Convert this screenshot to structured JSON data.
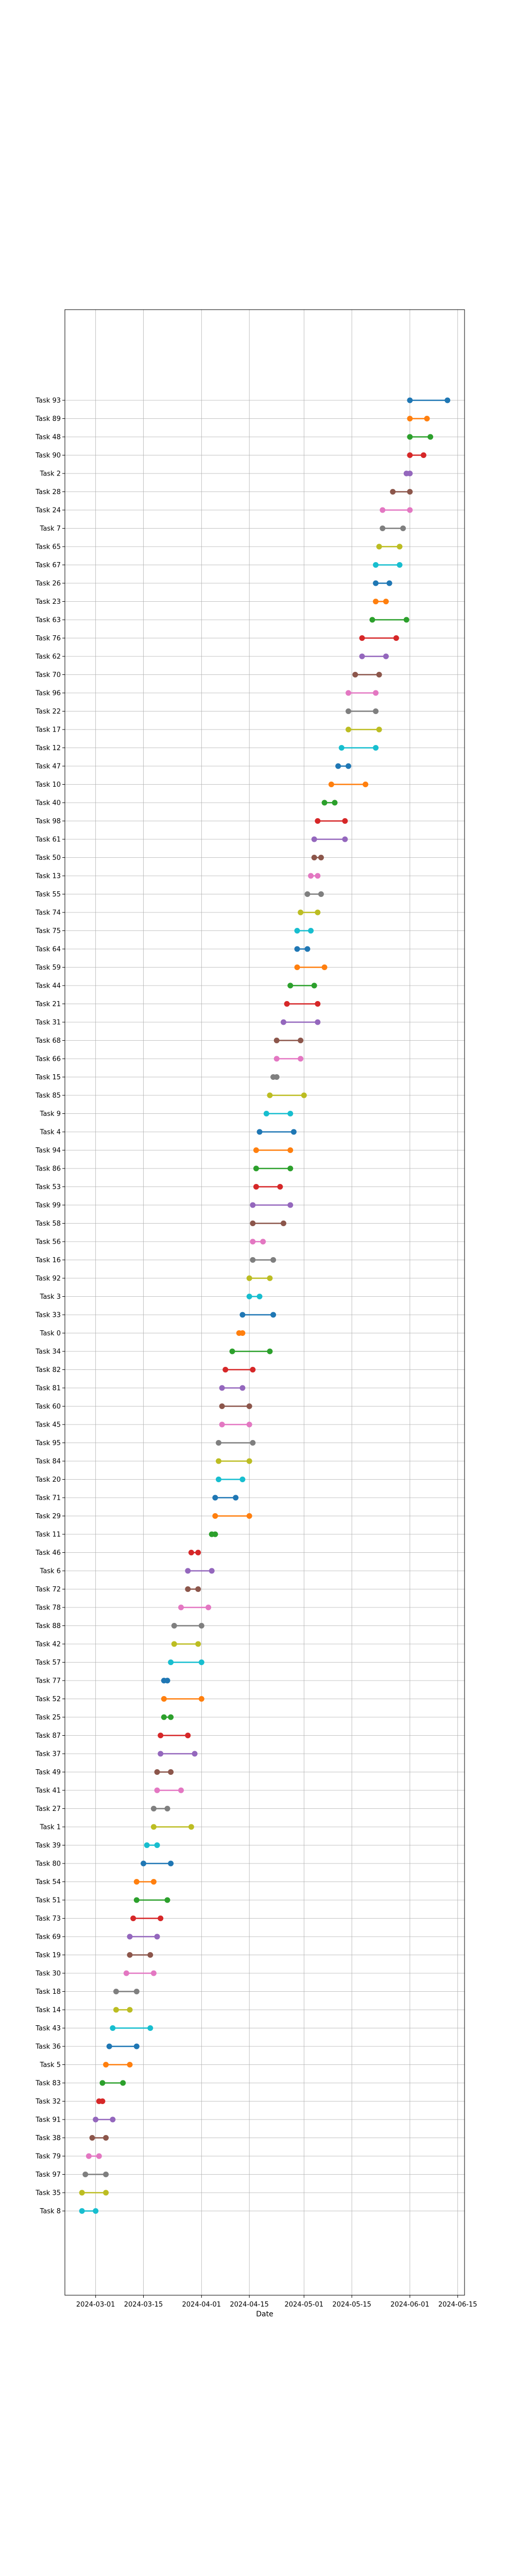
{
  "chart_data": {
    "type": "dumbbell",
    "title": "",
    "xlabel": "Date",
    "ylabel": "",
    "grid": true,
    "legend": "none",
    "x_type": "date",
    "xlim": [
      "2024-02-21",
      "2024-06-17"
    ],
    "x_ticks": [
      "2024-03-01",
      "2024-03-15",
      "2024-04-01",
      "2024-04-15",
      "2024-05-01",
      "2024-05-15",
      "2024-06-01",
      "2024-06-15"
    ],
    "palette": [
      "#1f77b4",
      "#ff7f0e",
      "#2ca02c",
      "#d62728",
      "#9467bd",
      "#8c564b",
      "#e377c2",
      "#7f7f7f",
      "#bcbd22",
      "#17becf"
    ],
    "tasks": [
      {
        "label": "Task 93",
        "start": "2024-06-01",
        "end": "2024-06-12"
      },
      {
        "label": "Task 89",
        "start": "2024-06-01",
        "end": "2024-06-06"
      },
      {
        "label": "Task 48",
        "start": "2024-06-01",
        "end": "2024-06-07"
      },
      {
        "label": "Task 90",
        "start": "2024-06-01",
        "end": "2024-06-05"
      },
      {
        "label": "Task 2",
        "start": "2024-05-31",
        "end": "2024-06-01"
      },
      {
        "label": "Task 28",
        "start": "2024-05-27",
        "end": "2024-06-01"
      },
      {
        "label": "Task 24",
        "start": "2024-05-24",
        "end": "2024-06-01"
      },
      {
        "label": "Task 7",
        "start": "2024-05-24",
        "end": "2024-05-30"
      },
      {
        "label": "Task 65",
        "start": "2024-05-23",
        "end": "2024-05-29"
      },
      {
        "label": "Task 67",
        "start": "2024-05-22",
        "end": "2024-05-29"
      },
      {
        "label": "Task 26",
        "start": "2024-05-22",
        "end": "2024-05-26"
      },
      {
        "label": "Task 23",
        "start": "2024-05-22",
        "end": "2024-05-25"
      },
      {
        "label": "Task 63",
        "start": "2024-05-21",
        "end": "2024-05-31"
      },
      {
        "label": "Task 76",
        "start": "2024-05-18",
        "end": "2024-05-28"
      },
      {
        "label": "Task 62",
        "start": "2024-05-18",
        "end": "2024-05-25"
      },
      {
        "label": "Task 70",
        "start": "2024-05-16",
        "end": "2024-05-23"
      },
      {
        "label": "Task 96",
        "start": "2024-05-14",
        "end": "2024-05-22"
      },
      {
        "label": "Task 22",
        "start": "2024-05-14",
        "end": "2024-05-22"
      },
      {
        "label": "Task 17",
        "start": "2024-05-14",
        "end": "2024-05-23"
      },
      {
        "label": "Task 12",
        "start": "2024-05-12",
        "end": "2024-05-22"
      },
      {
        "label": "Task 47",
        "start": "2024-05-11",
        "end": "2024-05-14"
      },
      {
        "label": "Task 10",
        "start": "2024-05-09",
        "end": "2024-05-19"
      },
      {
        "label": "Task 40",
        "start": "2024-05-07",
        "end": "2024-05-10"
      },
      {
        "label": "Task 98",
        "start": "2024-05-05",
        "end": "2024-05-13"
      },
      {
        "label": "Task 61",
        "start": "2024-05-04",
        "end": "2024-05-13"
      },
      {
        "label": "Task 50",
        "start": "2024-05-04",
        "end": "2024-05-06"
      },
      {
        "label": "Task 13",
        "start": "2024-05-03",
        "end": "2024-05-05"
      },
      {
        "label": "Task 55",
        "start": "2024-05-02",
        "end": "2024-05-06"
      },
      {
        "label": "Task 74",
        "start": "2024-04-30",
        "end": "2024-05-05"
      },
      {
        "label": "Task 75",
        "start": "2024-04-29",
        "end": "2024-05-03"
      },
      {
        "label": "Task 64",
        "start": "2024-04-29",
        "end": "2024-05-02"
      },
      {
        "label": "Task 59",
        "start": "2024-04-29",
        "end": "2024-05-07"
      },
      {
        "label": "Task 44",
        "start": "2024-04-27",
        "end": "2024-05-04"
      },
      {
        "label": "Task 21",
        "start": "2024-04-26",
        "end": "2024-05-05"
      },
      {
        "label": "Task 31",
        "start": "2024-04-25",
        "end": "2024-05-05"
      },
      {
        "label": "Task 68",
        "start": "2024-04-23",
        "end": "2024-04-30"
      },
      {
        "label": "Task 66",
        "start": "2024-04-23",
        "end": "2024-04-30"
      },
      {
        "label": "Task 15",
        "start": "2024-04-22",
        "end": "2024-04-23"
      },
      {
        "label": "Task 85",
        "start": "2024-04-21",
        "end": "2024-05-01"
      },
      {
        "label": "Task 9",
        "start": "2024-04-20",
        "end": "2024-04-27"
      },
      {
        "label": "Task 4",
        "start": "2024-04-18",
        "end": "2024-04-28"
      },
      {
        "label": "Task 94",
        "start": "2024-04-17",
        "end": "2024-04-27"
      },
      {
        "label": "Task 86",
        "start": "2024-04-17",
        "end": "2024-04-27"
      },
      {
        "label": "Task 53",
        "start": "2024-04-17",
        "end": "2024-04-24"
      },
      {
        "label": "Task 99",
        "start": "2024-04-16",
        "end": "2024-04-27"
      },
      {
        "label": "Task 58",
        "start": "2024-04-16",
        "end": "2024-04-25"
      },
      {
        "label": "Task 56",
        "start": "2024-04-16",
        "end": "2024-04-19"
      },
      {
        "label": "Task 16",
        "start": "2024-04-16",
        "end": "2024-04-22"
      },
      {
        "label": "Task 92",
        "start": "2024-04-15",
        "end": "2024-04-21"
      },
      {
        "label": "Task 3",
        "start": "2024-04-15",
        "end": "2024-04-18"
      },
      {
        "label": "Task 33",
        "start": "2024-04-13",
        "end": "2024-04-22"
      },
      {
        "label": "Task 0",
        "start": "2024-04-12",
        "end": "2024-04-13"
      },
      {
        "label": "Task 34",
        "start": "2024-04-10",
        "end": "2024-04-21"
      },
      {
        "label": "Task 82",
        "start": "2024-04-08",
        "end": "2024-04-16"
      },
      {
        "label": "Task 81",
        "start": "2024-04-07",
        "end": "2024-04-13"
      },
      {
        "label": "Task 60",
        "start": "2024-04-07",
        "end": "2024-04-15"
      },
      {
        "label": "Task 45",
        "start": "2024-04-07",
        "end": "2024-04-15"
      },
      {
        "label": "Task 95",
        "start": "2024-04-06",
        "end": "2024-04-16"
      },
      {
        "label": "Task 84",
        "start": "2024-04-06",
        "end": "2024-04-15"
      },
      {
        "label": "Task 20",
        "start": "2024-04-06",
        "end": "2024-04-13"
      },
      {
        "label": "Task 71",
        "start": "2024-04-05",
        "end": "2024-04-11"
      },
      {
        "label": "Task 29",
        "start": "2024-04-05",
        "end": "2024-04-15"
      },
      {
        "label": "Task 11",
        "start": "2024-04-04",
        "end": "2024-04-05"
      },
      {
        "label": "Task 46",
        "start": "2024-03-29",
        "end": "2024-03-31"
      },
      {
        "label": "Task 6",
        "start": "2024-03-28",
        "end": "2024-04-04"
      },
      {
        "label": "Task 72",
        "start": "2024-03-28",
        "end": "2024-03-31"
      },
      {
        "label": "Task 78",
        "start": "2024-03-26",
        "end": "2024-04-03"
      },
      {
        "label": "Task 88",
        "start": "2024-03-24",
        "end": "2024-04-01"
      },
      {
        "label": "Task 42",
        "start": "2024-03-24",
        "end": "2024-03-31"
      },
      {
        "label": "Task 57",
        "start": "2024-03-23",
        "end": "2024-04-01"
      },
      {
        "label": "Task 77",
        "start": "2024-03-21",
        "end": "2024-03-22"
      },
      {
        "label": "Task 52",
        "start": "2024-03-21",
        "end": "2024-04-01"
      },
      {
        "label": "Task 25",
        "start": "2024-03-21",
        "end": "2024-03-23"
      },
      {
        "label": "Task 87",
        "start": "2024-03-20",
        "end": "2024-03-28"
      },
      {
        "label": "Task 37",
        "start": "2024-03-20",
        "end": "2024-03-30"
      },
      {
        "label": "Task 49",
        "start": "2024-03-19",
        "end": "2024-03-23"
      },
      {
        "label": "Task 41",
        "start": "2024-03-19",
        "end": "2024-03-26"
      },
      {
        "label": "Task 27",
        "start": "2024-03-18",
        "end": "2024-03-22"
      },
      {
        "label": "Task 1",
        "start": "2024-03-18",
        "end": "2024-03-29"
      },
      {
        "label": "Task 39",
        "start": "2024-03-16",
        "end": "2024-03-19"
      },
      {
        "label": "Task 80",
        "start": "2024-03-15",
        "end": "2024-03-23"
      },
      {
        "label": "Task 54",
        "start": "2024-03-13",
        "end": "2024-03-18"
      },
      {
        "label": "Task 51",
        "start": "2024-03-13",
        "end": "2024-03-22"
      },
      {
        "label": "Task 73",
        "start": "2024-03-12",
        "end": "2024-03-20"
      },
      {
        "label": "Task 69",
        "start": "2024-03-11",
        "end": "2024-03-19"
      },
      {
        "label": "Task 19",
        "start": "2024-03-11",
        "end": "2024-03-17"
      },
      {
        "label": "Task 30",
        "start": "2024-03-10",
        "end": "2024-03-18"
      },
      {
        "label": "Task 18",
        "start": "2024-03-07",
        "end": "2024-03-13"
      },
      {
        "label": "Task 14",
        "start": "2024-03-07",
        "end": "2024-03-11"
      },
      {
        "label": "Task 43",
        "start": "2024-03-06",
        "end": "2024-03-17"
      },
      {
        "label": "Task 36",
        "start": "2024-03-05",
        "end": "2024-03-13"
      },
      {
        "label": "Task 5",
        "start": "2024-03-04",
        "end": "2024-03-11"
      },
      {
        "label": "Task 83",
        "start": "2024-03-03",
        "end": "2024-03-09"
      },
      {
        "label": "Task 32",
        "start": "2024-03-02",
        "end": "2024-03-03"
      },
      {
        "label": "Task 91",
        "start": "2024-03-01",
        "end": "2024-03-06"
      },
      {
        "label": "Task 38",
        "start": "2024-02-29",
        "end": "2024-03-04"
      },
      {
        "label": "Task 79",
        "start": "2024-02-28",
        "end": "2024-03-02"
      },
      {
        "label": "Task 97",
        "start": "2024-02-27",
        "end": "2024-03-04"
      },
      {
        "label": "Task 35",
        "start": "2024-02-26",
        "end": "2024-03-04"
      },
      {
        "label": "Task 8",
        "start": "2024-02-26",
        "end": "2024-03-01"
      }
    ]
  }
}
